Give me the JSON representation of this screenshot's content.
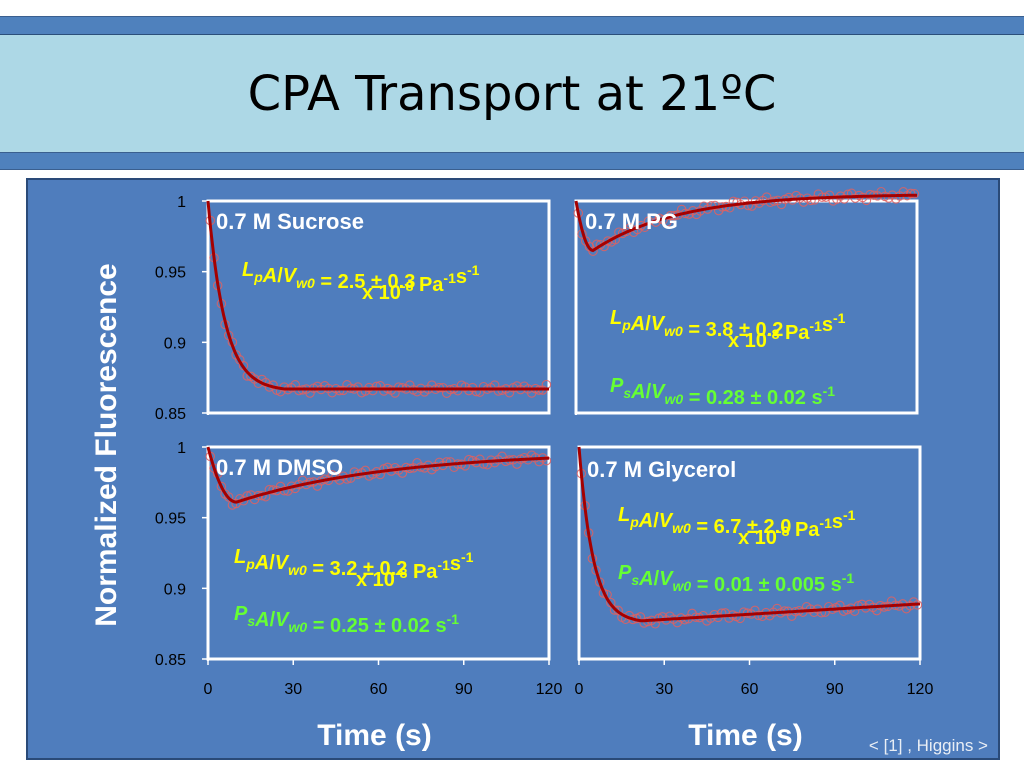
{
  "slide_title": "CPA Transport at 21ºC",
  "citation": "< [1] , Higgins >",
  "colors": {
    "band": "#4f81bd",
    "title_box": "#add8e6",
    "panel": "#4f7dbd",
    "fit_curve": "#a50000",
    "markers": "#e06060",
    "yellow_text": "#ffff00",
    "green_text": "#66ff33"
  },
  "chart_data": [
    {
      "type": "scatter",
      "title": "0.7 M Sucrose",
      "ylabel": "Normalized Fluorescence",
      "xlabel": "",
      "xlim": [
        0,
        120
      ],
      "ylim": [
        0.85,
        1.0
      ],
      "xticks": [],
      "yticks": [
        "1",
        "0.95",
        "0.9",
        "0.85"
      ],
      "annotations": [
        {
          "parts": [
            {
              "t": "L"
            },
            {
              "t": "p",
              "sub": true
            },
            {
              "t": "A"
            },
            {
              "t": "/",
              "plain": true
            },
            {
              "t": "V"
            },
            {
              "t": "w0",
              "sub": true
            },
            {
              "t": " = 2.5 ± 0.3",
              "plain": true
            }
          ],
          "color": "yellow"
        },
        {
          "parts": [
            {
              "t": "x 10",
              "plain": true
            },
            {
              "t": "-8",
              "sup": true
            },
            {
              "t": " Pa",
              "plain": true
            },
            {
              "t": "-1",
              "sup": true
            },
            {
              "t": "s",
              "plain": true
            },
            {
              "t": "-1",
              "sup": true
            }
          ],
          "color": "yellow"
        }
      ],
      "series": [
        {
          "model": "shrink",
          "params": {
            "y0": 1.0,
            "ymin": 0.867,
            "tmin": 27,
            "rise": 0.0,
            "tau": 6
          }
        }
      ]
    },
    {
      "type": "scatter",
      "title": "0.7 M PG",
      "xlabel": "",
      "xlim": [
        0,
        120
      ],
      "ylim": [
        0.85,
        1.0
      ],
      "xticks": [],
      "yticks": [],
      "annotations": [
        {
          "parts": [
            {
              "t": "L"
            },
            {
              "t": "p",
              "sub": true
            },
            {
              "t": "A"
            },
            {
              "t": "/",
              "plain": true
            },
            {
              "t": "V"
            },
            {
              "t": "w0",
              "sub": true
            },
            {
              "t": " = 3.8 ± 0.2",
              "plain": true
            }
          ],
          "color": "yellow"
        },
        {
          "parts": [
            {
              "t": "x 10",
              "plain": true
            },
            {
              "t": "-8",
              "sup": true
            },
            {
              "t": " Pa",
              "plain": true
            },
            {
              "t": "-1",
              "sup": true
            },
            {
              "t": "s",
              "plain": true
            },
            {
              "t": "-1",
              "sup": true
            }
          ],
          "color": "yellow"
        },
        {
          "parts": [
            {
              "t": "P"
            },
            {
              "t": "s",
              "sub": true
            },
            {
              "t": "A"
            },
            {
              "t": "/",
              "plain": true
            },
            {
              "t": "V"
            },
            {
              "t": "w0",
              "sub": true
            },
            {
              "t": " = 0.28 ± 0.02 s",
              "plain": true
            },
            {
              "t": "-1",
              "sup": true
            }
          ],
          "color": "green"
        }
      ],
      "series": [
        {
          "model": "swell",
          "params": {
            "y0": 1.0,
            "ymin": 0.965,
            "tmin": 6,
            "yinf": 1.005,
            "tau": 30
          }
        }
      ]
    },
    {
      "type": "scatter",
      "title": "0.7 M DMSO",
      "xlabel": "Time (s)",
      "xlim": [
        0,
        120
      ],
      "ylim": [
        0.85,
        1.0
      ],
      "xticks": [
        "0",
        "30",
        "60",
        "90",
        "120"
      ],
      "yticks": [
        "1",
        "0.95",
        "0.9",
        "0.85"
      ],
      "annotations": [
        {
          "parts": [
            {
              "t": "L"
            },
            {
              "t": "p",
              "sub": true
            },
            {
              "t": "A"
            },
            {
              "t": "/",
              "plain": true
            },
            {
              "t": "V"
            },
            {
              "t": "w0",
              "sub": true
            },
            {
              "t": " = 3.2 ± 0.2",
              "plain": true
            }
          ],
          "color": "yellow"
        },
        {
          "parts": [
            {
              "t": "x 10",
              "plain": true
            },
            {
              "t": "-8",
              "sup": true
            },
            {
              "t": " Pa",
              "plain": true
            },
            {
              "t": "-1",
              "sup": true
            },
            {
              "t": "s",
              "plain": true
            },
            {
              "t": "-1",
              "sup": true
            }
          ],
          "color": "yellow"
        },
        {
          "parts": [
            {
              "t": "P"
            },
            {
              "t": "s",
              "sub": true
            },
            {
              "t": "A"
            },
            {
              "t": "/",
              "plain": true
            },
            {
              "t": "V"
            },
            {
              "t": "w0",
              "sub": true
            },
            {
              "t": " = 0.25 ± 0.02 s",
              "plain": true
            },
            {
              "t": "-1",
              "sup": true
            }
          ],
          "color": "green"
        }
      ],
      "series": [
        {
          "model": "swell",
          "params": {
            "y0": 1.0,
            "ymin": 0.961,
            "tmin": 10,
            "yinf": 0.997,
            "tau": 55
          }
        }
      ]
    },
    {
      "type": "scatter",
      "title": "0.7 M Glycerol",
      "xlabel": "Time (s)",
      "xlim": [
        0,
        120
      ],
      "ylim": [
        0.85,
        1.0
      ],
      "xticks": [
        "0",
        "30",
        "60",
        "90",
        "120"
      ],
      "yticks": [],
      "annotations": [
        {
          "parts": [
            {
              "t": "L"
            },
            {
              "t": "p",
              "sub": true
            },
            {
              "t": "A"
            },
            {
              "t": "/",
              "plain": true
            },
            {
              "t": "V"
            },
            {
              "t": "w0",
              "sub": true
            },
            {
              "t": " = 6.7 ± 2.0",
              "plain": true
            }
          ],
          "color": "yellow"
        },
        {
          "parts": [
            {
              "t": "x 10",
              "plain": true
            },
            {
              "t": "-8",
              "sup": true
            },
            {
              "t": " Pa",
              "plain": true
            },
            {
              "t": "-1",
              "sup": true
            },
            {
              "t": "s",
              "plain": true
            },
            {
              "t": "-1",
              "sup": true
            }
          ],
          "color": "yellow"
        },
        {
          "parts": [
            {
              "t": "P"
            },
            {
              "t": "s",
              "sub": true
            },
            {
              "t": "A"
            },
            {
              "t": "/",
              "plain": true
            },
            {
              "t": "V"
            },
            {
              "t": "w0",
              "sub": true
            },
            {
              "t": " = 0.01 ± 0.005 s",
              "plain": true
            },
            {
              "t": "-1",
              "sup": true
            }
          ],
          "color": "green"
        }
      ],
      "series": [
        {
          "model": "shrink",
          "params": {
            "y0": 1.0,
            "ymin": 0.877,
            "tmin": 22,
            "rise": 0.012,
            "tau": 5
          }
        }
      ]
    }
  ]
}
